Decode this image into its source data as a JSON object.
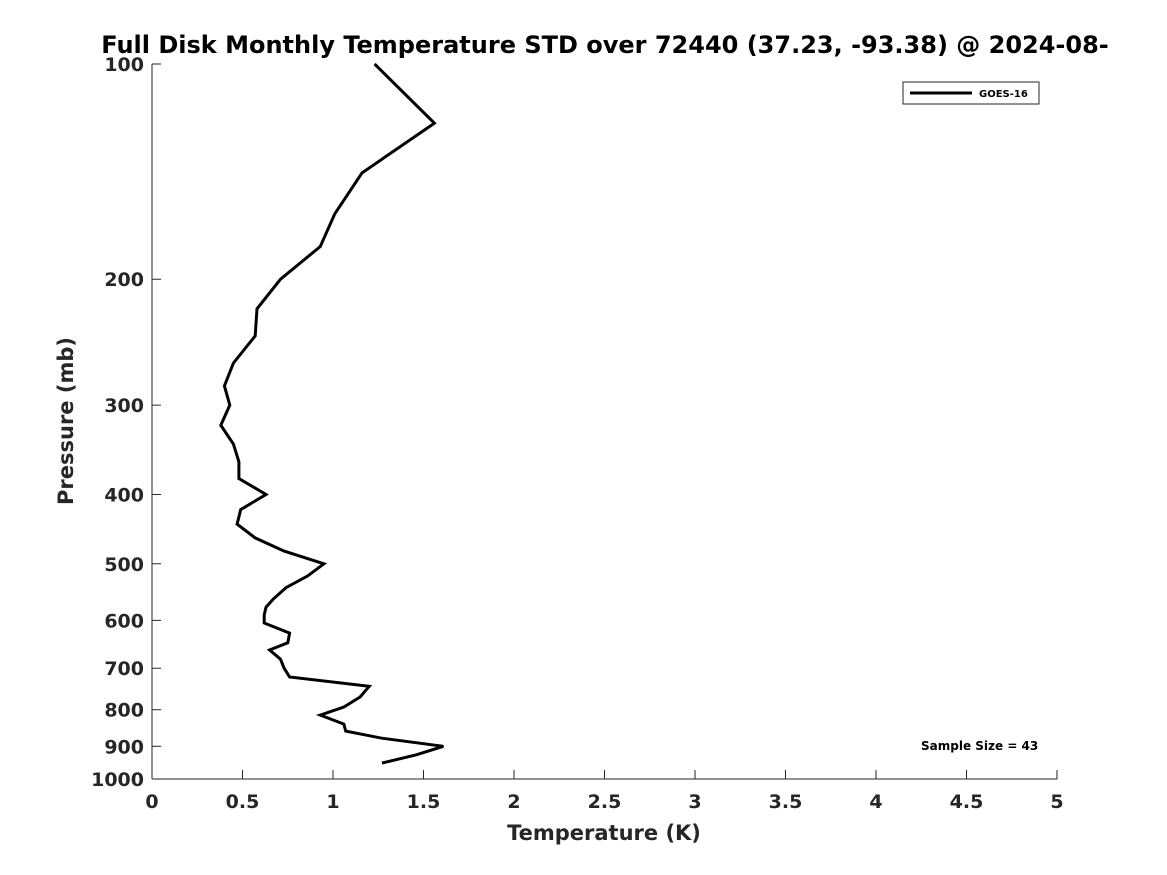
{
  "chart_data": {
    "type": "line",
    "title": "Full Disk Monthly Temperature STD over 72440 (37.23, -93.38) @ 2024-08-",
    "xlabel": "Temperature (K)",
    "ylabel": "Pressure (mb)",
    "xlim": [
      0,
      5
    ],
    "ylim": [
      1000,
      100
    ],
    "yscale": "log",
    "y_inverted": true,
    "grid": false,
    "xticks": [
      0,
      0.5,
      1,
      1.5,
      2,
      2.5,
      3,
      3.5,
      4,
      4.5,
      5
    ],
    "xtick_labels": [
      "0",
      "0.5",
      "1",
      "1.5",
      "2",
      "2.5",
      "3",
      "3.5",
      "4",
      "4.5",
      "5"
    ],
    "yticks": [
      100,
      200,
      300,
      400,
      500,
      600,
      700,
      800,
      900,
      1000
    ],
    "ytick_labels": [
      "100",
      "200",
      "300",
      "400",
      "500",
      "600",
      "700",
      "800",
      "900",
      "1000"
    ],
    "legend_position": "top-right",
    "annotation": "Sample Size = 43",
    "series": [
      {
        "name": "GOES-16",
        "color": "#000000",
        "points": [
          [
            1.23,
            100
          ],
          [
            1.56,
            121
          ],
          [
            1.16,
            142
          ],
          [
            1.01,
            162
          ],
          [
            0.93,
            180
          ],
          [
            0.71,
            200
          ],
          [
            0.58,
            220
          ],
          [
            0.57,
            240
          ],
          [
            0.45,
            262
          ],
          [
            0.4,
            282
          ],
          [
            0.43,
            300
          ],
          [
            0.38,
            320
          ],
          [
            0.45,
            340
          ],
          [
            0.48,
            360
          ],
          [
            0.48,
            380
          ],
          [
            0.63,
            400
          ],
          [
            0.49,
            420
          ],
          [
            0.47,
            440
          ],
          [
            0.57,
            460
          ],
          [
            0.73,
            480
          ],
          [
            0.95,
            500
          ],
          [
            0.86,
            520
          ],
          [
            0.74,
            540
          ],
          [
            0.67,
            560
          ],
          [
            0.63,
            575
          ],
          [
            0.62,
            590
          ],
          [
            0.62,
            605
          ],
          [
            0.76,
            625
          ],
          [
            0.75,
            645
          ],
          [
            0.65,
            660
          ],
          [
            0.71,
            680
          ],
          [
            0.73,
            700
          ],
          [
            0.76,
            720
          ],
          [
            1.2,
            742
          ],
          [
            1.15,
            768
          ],
          [
            1.06,
            793
          ],
          [
            0.93,
            814
          ],
          [
            1.06,
            838
          ],
          [
            1.07,
            857
          ],
          [
            1.27,
            877
          ],
          [
            1.61,
            900
          ],
          [
            1.46,
            925
          ],
          [
            1.27,
            950
          ]
        ]
      }
    ]
  }
}
